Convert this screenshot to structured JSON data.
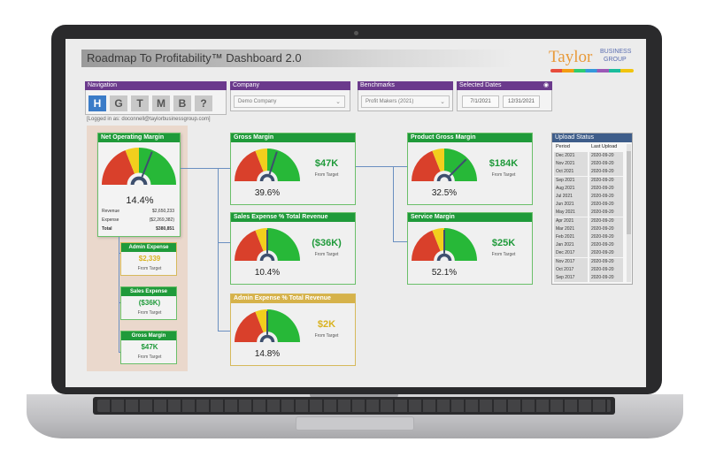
{
  "dashboard": {
    "title": "Roadmap To Profitability™ Dashboard 2.0",
    "logo": {
      "main": "Taylor",
      "sub1": "BUSINESS",
      "sub2": "GROUP"
    }
  },
  "navigation": {
    "header": "Navigation",
    "buttons": [
      "H",
      "G",
      "T",
      "M",
      "B",
      "?"
    ],
    "logged_in": "[Logged in as: doconnell@taylorbusinessgroup.com]"
  },
  "company": {
    "header": "Company",
    "value": "Demo Company"
  },
  "benchmarks": {
    "header": "Benchmarks",
    "value": "Profit Makers (2021)"
  },
  "dates": {
    "header": "Selected Dates",
    "start": "7/1/2021",
    "end": "12/31/2021"
  },
  "net_operating_margin": {
    "title": "Net Operating Margin",
    "percent": "14.4%",
    "revenue_label": "Revenue",
    "revenue_value": "$2,650,233",
    "expense_label": "Expense",
    "expense_value": "($2,269,382)",
    "total_label": "Total",
    "total_value": "$380,851",
    "gauge_level": 0.62
  },
  "left_cards": [
    {
      "title": "Admin Expense",
      "value": "$2,339",
      "sub": "From Target"
    },
    {
      "title": "Sales Expense",
      "value": "($36K)",
      "sub": "From Target"
    },
    {
      "title": "Gross Margin",
      "value": "$47K",
      "sub": "From Target"
    }
  ],
  "gauges": {
    "gross_margin": {
      "title": "Gross Margin",
      "percent": "39.6%",
      "value": "$47K",
      "sub": "From Target",
      "gauge_level": 0.6
    },
    "sales_expense": {
      "title": "Sales Expense % Total Revenue",
      "percent": "10.4%",
      "value": "($36K)",
      "sub": "From Target",
      "gauge_level": 0.5
    },
    "admin_expense": {
      "title": "Admin Expense % Total Revenue",
      "percent": "14.8%",
      "value": "$2K",
      "sub": "From Target",
      "gauge_level": 0.5
    },
    "product_gross_margin": {
      "title": "Product Gross Margin",
      "percent": "32.5%",
      "value": "$184K",
      "sub": "From Target",
      "gauge_level": 0.75
    },
    "service_margin": {
      "title": "Service Margin",
      "percent": "52.1%",
      "value": "$25K",
      "sub": "From Target",
      "gauge_level": 0.5
    }
  },
  "upload_status": {
    "header": "Upload Status",
    "col_period": "Period",
    "col_last": "Last Upload",
    "rows": [
      [
        "Dec 2021",
        "2020-09-20"
      ],
      [
        "Nov 2021",
        "2020-09-20"
      ],
      [
        "Oct 2021",
        "2020-09-20"
      ],
      [
        "Sep 2021",
        "2020-09-20"
      ],
      [
        "Aug 2021",
        "2020-09-20"
      ],
      [
        "Jul 2021",
        "2020-09-20"
      ],
      [
        "Jun 2021",
        "2020-09-20"
      ],
      [
        "May 2021",
        "2020-09-20"
      ],
      [
        "Apr 2021",
        "2020-09-20"
      ],
      [
        "Mar 2021",
        "2020-09-20"
      ],
      [
        "Feb 2021",
        "2020-09-20"
      ],
      [
        "Jan 2021",
        "2020-09-20"
      ],
      [
        "Dec 2017",
        "2020-09-20"
      ],
      [
        "Nov 2017",
        "2020-09-20"
      ],
      [
        "Oct 2017",
        "2020-09-20"
      ],
      [
        "Sep 2017",
        "2020-09-20"
      ]
    ]
  },
  "colors": {
    "red": "#d9402b",
    "yellow": "#f2cf1d",
    "green": "#27b838",
    "purple": "#6b3a8c",
    "green_head": "#1f9a3a",
    "blue_head": "#3e5d8a"
  }
}
